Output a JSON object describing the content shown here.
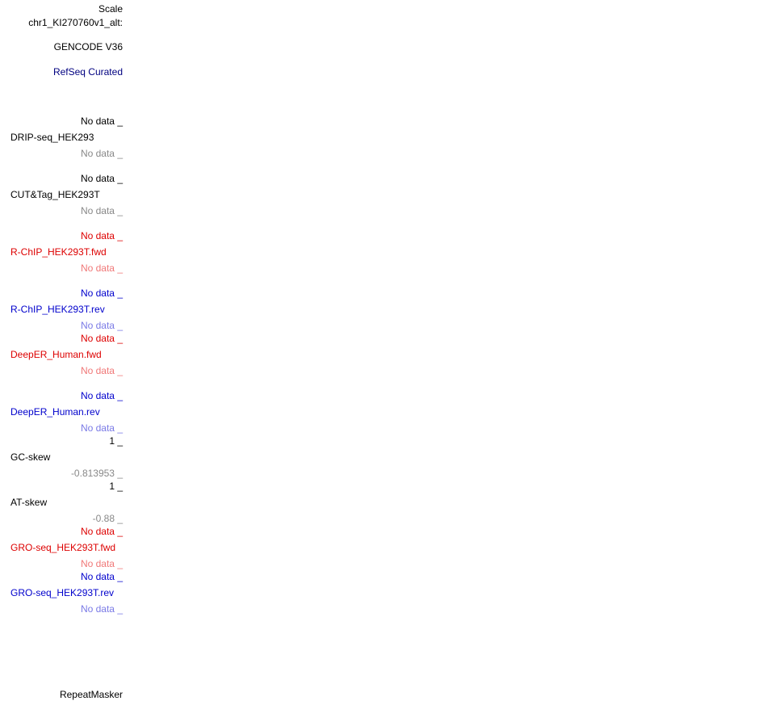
{
  "scale_label": "Scale",
  "chrom_label": "chr1_KI270760v1_alt:",
  "gencode_label": "GENCODE V36",
  "refseq_label": "RefSeq Curated",
  "repeatmasker_label": "RepeatMasker",
  "tracks": {
    "drip": {
      "top": "No data _",
      "name": "DRIP-seq_HEK293",
      "bottom": "No data _"
    },
    "cuttag": {
      "top": "No data _",
      "name": "CUT&Tag_HEK293T",
      "bottom": "No data _"
    },
    "rchip_fwd": {
      "top": "No data _",
      "name": "R-ChIP_HEK293T.fwd",
      "bottom": "No data _"
    },
    "rchip_rev": {
      "top": "No data _",
      "name": "R-ChIP_HEK293T.rev",
      "bottom": "No data _"
    },
    "deeper_fwd": {
      "top": "No data _",
      "name": "DeepER_Human.fwd",
      "bottom": "No data _"
    },
    "deeper_rev": {
      "top": "No data _",
      "name": "DeepER_Human.rev",
      "bottom": "No data _"
    },
    "gcskew": {
      "top": "1 _",
      "name": "GC-skew",
      "bottom": "-0.813953 _"
    },
    "atskew": {
      "top": "1 _",
      "name": "AT-skew",
      "bottom": "-0.88 _"
    },
    "gro_fwd": {
      "top": "No data _",
      "name": "GRO-seq_HEK293T.fwd",
      "bottom": "No data _"
    },
    "gro_rev": {
      "top": "No data _",
      "name": "GRO-seq_HEK293T.rev",
      "bottom": "No data _"
    }
  },
  "colors": {
    "black": "#000000",
    "gray": "#888888",
    "navy": "#000080",
    "red": "#dd0000",
    "red_light": "#f07878",
    "blue": "#0000cc",
    "blue_light": "#7a7ae6"
  }
}
